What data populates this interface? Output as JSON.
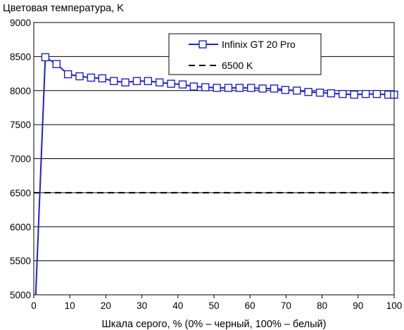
{
  "chart_data": {
    "type": "line",
    "ylabel": "Цветовая температура, K",
    "xlabel": "Шкала серого, % (0% – черный, 100% – белый)",
    "xlim": [
      0,
      100
    ],
    "ylim": [
      5000,
      9000
    ],
    "xticks": [
      "0",
      "10",
      "20",
      "30",
      "40",
      "50",
      "60",
      "70",
      "80",
      "90",
      "100"
    ],
    "yticks": [
      "5000",
      "5500",
      "6000",
      "6500",
      "7000",
      "7500",
      "8000",
      "8500",
      "9000"
    ],
    "grid": "horizontal",
    "legend_position": "top-right",
    "series": [
      {
        "name": "Infinix GT 20 Pro",
        "color": "#1f1fcc",
        "marker": "square",
        "x": [
          0.5,
          3.2,
          6.3,
          9.5,
          12.7,
          15.9,
          19.0,
          22.2,
          25.4,
          28.6,
          31.7,
          34.9,
          38.1,
          41.3,
          44.4,
          47.6,
          50.8,
          54.0,
          57.1,
          60.3,
          63.5,
          66.7,
          69.8,
          73.0,
          76.2,
          79.4,
          82.5,
          85.7,
          88.9,
          92.1,
          95.2,
          98.4,
          100
        ],
        "y": [
          4950,
          8490,
          8390,
          8240,
          8210,
          8190,
          8180,
          8140,
          8120,
          8140,
          8140,
          8120,
          8100,
          8090,
          8060,
          8050,
          8040,
          8040,
          8040,
          8040,
          8030,
          8030,
          8010,
          8000,
          7980,
          7970,
          7960,
          7950,
          7940,
          7950,
          7950,
          7940,
          7940
        ]
      },
      {
        "name": "6500 K",
        "color": "#000000",
        "dash": "dashed",
        "x": [
          0,
          100
        ],
        "y": [
          6500,
          6500
        ]
      }
    ]
  }
}
